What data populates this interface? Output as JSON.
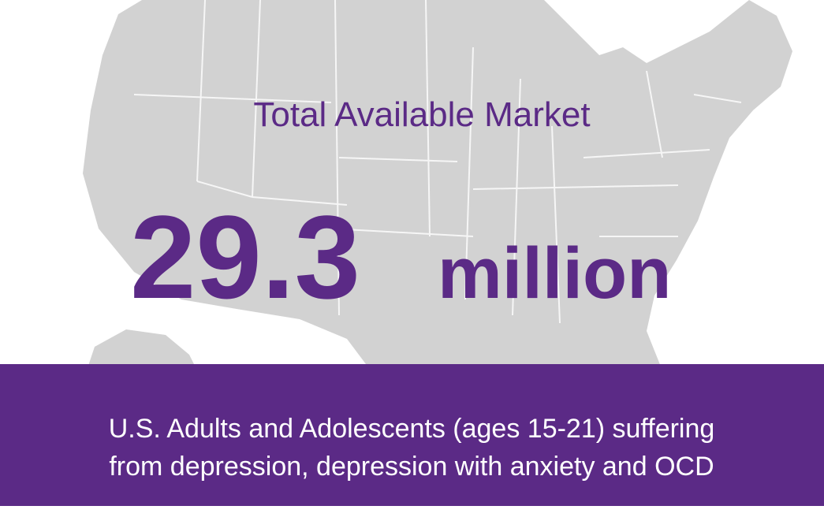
{
  "title": "Total Available Market",
  "figure": {
    "value": 29.3,
    "unit": "million"
  },
  "caption": {
    "lines": [
      "U.S. Adults and Adolescents (ages 15-21) suffering",
      "from depression, depression with anxiety and OCD"
    ]
  }
}
